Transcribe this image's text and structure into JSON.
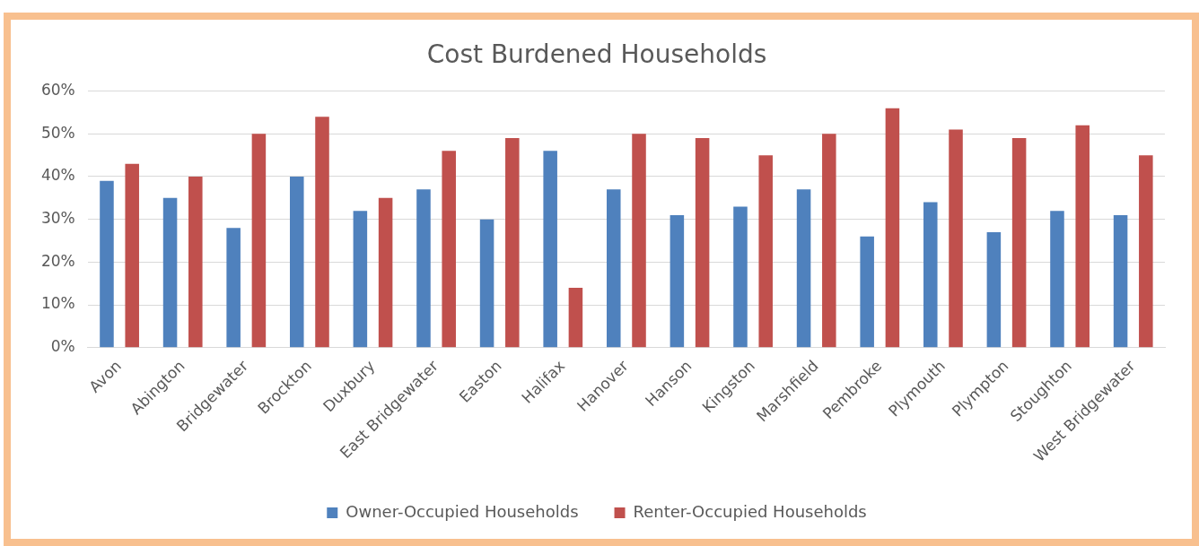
{
  "chart_data": {
    "type": "bar",
    "title": "Cost Burdened Households",
    "categories": [
      "Avon",
      "Abington",
      "Bridgewater",
      "Brockton",
      "Duxbury",
      "East Bridgewater",
      "Easton",
      "Halifax",
      "Hanover",
      "Hanson",
      "Kingston",
      "Marshfield",
      "Pembroke",
      "Plymouth",
      "Plympton",
      "Stoughton",
      "West Bridgewater"
    ],
    "series": [
      {
        "name": "Owner-Occupied Households",
        "color": "#4f81bd",
        "values": [
          39,
          35,
          28,
          40,
          32,
          37,
          30,
          46,
          37,
          31,
          33,
          37,
          26,
          34,
          27,
          32,
          31
        ]
      },
      {
        "name": "Renter-Occupied Households",
        "color": "#c0504d",
        "values": [
          43,
          40,
          50,
          54,
          35,
          46,
          49,
          14,
          50,
          49,
          45,
          50,
          56,
          51,
          49,
          52,
          45
        ]
      }
    ],
    "ylim": [
      0,
      60
    ],
    "yticks": [
      {
        "value": 0,
        "label": "0%"
      },
      {
        "value": 10,
        "label": "10%"
      },
      {
        "value": 20,
        "label": "20%"
      },
      {
        "value": 30,
        "label": "30%"
      },
      {
        "value": 40,
        "label": "40%"
      },
      {
        "value": 50,
        "label": "50%"
      },
      {
        "value": 60,
        "label": "60%"
      }
    ],
    "grid": "y",
    "legend": "bottom"
  }
}
